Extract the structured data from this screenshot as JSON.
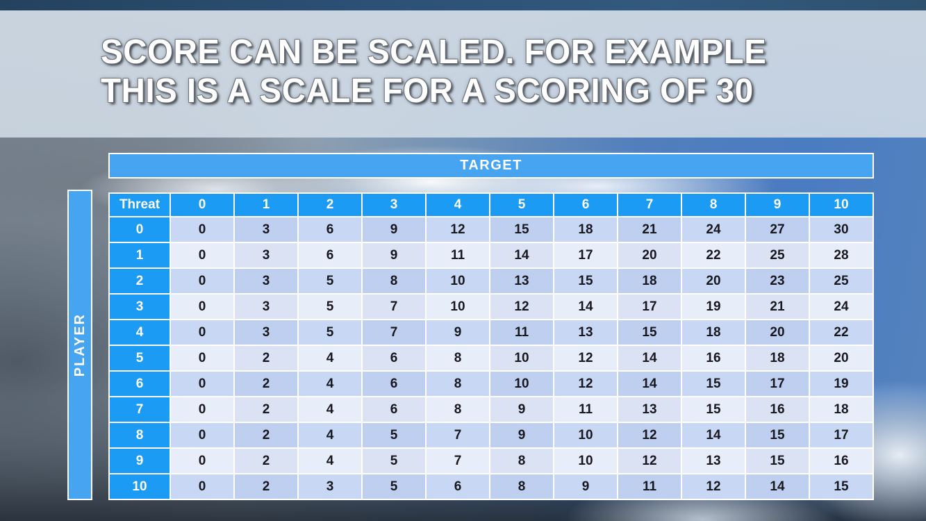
{
  "slide": {
    "title_line1": "SCORE CAN BE SCALED. FOR EXAMPLE",
    "title_line2": "THIS IS A SCALE FOR A SCORING OF 30"
  },
  "table": {
    "top_axis_label": "TARGET",
    "left_axis_label": "PLAYER",
    "corner_label": "Threat",
    "column_headers": [
      "0",
      "1",
      "2",
      "3",
      "4",
      "5",
      "6",
      "7",
      "8",
      "9",
      "10"
    ],
    "row_headers": [
      "0",
      "1",
      "2",
      "3",
      "4",
      "5",
      "6",
      "7",
      "8",
      "9",
      "10"
    ],
    "rows": [
      [
        0,
        3,
        6,
        9,
        12,
        15,
        18,
        21,
        24,
        27,
        30
      ],
      [
        0,
        3,
        6,
        9,
        11,
        14,
        17,
        20,
        22,
        25,
        28
      ],
      [
        0,
        3,
        5,
        8,
        10,
        13,
        15,
        18,
        20,
        23,
        25
      ],
      [
        0,
        3,
        5,
        7,
        10,
        12,
        14,
        17,
        19,
        21,
        24
      ],
      [
        0,
        3,
        5,
        7,
        9,
        11,
        13,
        15,
        18,
        20,
        22
      ],
      [
        0,
        2,
        4,
        6,
        8,
        10,
        12,
        14,
        16,
        18,
        20
      ],
      [
        0,
        2,
        4,
        6,
        8,
        10,
        12,
        14,
        15,
        17,
        19
      ],
      [
        0,
        2,
        4,
        6,
        8,
        9,
        11,
        13,
        15,
        16,
        18
      ],
      [
        0,
        2,
        4,
        5,
        7,
        9,
        10,
        12,
        14,
        15,
        17
      ],
      [
        0,
        2,
        4,
        5,
        7,
        8,
        10,
        12,
        13,
        15,
        16
      ],
      [
        0,
        2,
        3,
        5,
        6,
        8,
        9,
        11,
        12,
        14,
        15
      ]
    ]
  },
  "colors": {
    "header_blue": "#1b9bf3",
    "axis_blue": "#47a4f0",
    "row_dark": "#c8d8f4",
    "row_light": "#e8edfa",
    "cell_text": "#17171f"
  }
}
